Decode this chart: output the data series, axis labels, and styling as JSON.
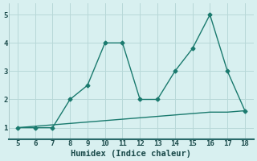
{
  "xlabel": "Humidex (Indice chaleur)",
  "x_main": [
    5,
    6,
    7,
    8,
    9,
    10,
    11,
    12,
    13,
    14,
    15,
    16,
    17,
    18
  ],
  "y_main": [
    1,
    1,
    1,
    2,
    2.5,
    4,
    4,
    2,
    2,
    3,
    3.8,
    5,
    3,
    1.6
  ],
  "x_smooth": [
    5,
    6,
    7,
    8,
    9,
    10,
    11,
    12,
    13,
    14,
    15,
    16,
    17,
    18
  ],
  "y_smooth": [
    1.0,
    1.05,
    1.1,
    1.15,
    1.2,
    1.25,
    1.3,
    1.35,
    1.4,
    1.45,
    1.5,
    1.55,
    1.55,
    1.6
  ],
  "line_color": "#1a7a6e",
  "bg_color": "#d8f0f0",
  "grid_color": "#b8d8d8",
  "xlim": [
    4.5,
    18.5
  ],
  "ylim": [
    0.6,
    5.4
  ],
  "xticks": [
    5,
    6,
    7,
    8,
    9,
    10,
    11,
    12,
    13,
    14,
    15,
    16,
    17,
    18
  ],
  "yticks": [
    1,
    2,
    3,
    4,
    5
  ],
  "marker": "D",
  "markersize": 2.5,
  "linewidth": 1.0,
  "tick_fontsize": 6.5,
  "xlabel_fontsize": 7.5
}
